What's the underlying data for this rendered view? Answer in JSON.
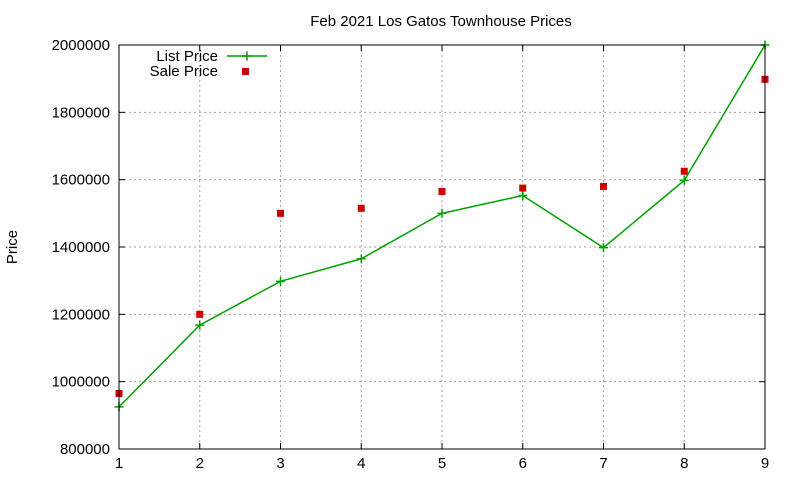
{
  "chart_data": {
    "type": "line",
    "title": "Feb 2021 Los Gatos Townhouse Prices",
    "xlabel": "",
    "ylabel": "Price",
    "x": [
      1,
      2,
      3,
      4,
      5,
      6,
      7,
      8,
      9
    ],
    "x_ticks": [
      "1",
      "2",
      "3",
      "4",
      "5",
      "6",
      "7",
      "8",
      "9"
    ],
    "y_ticks": [
      "800000",
      "1000000",
      "1200000",
      "1400000",
      "1600000",
      "1800000",
      "2000000"
    ],
    "xlim": [
      1,
      9
    ],
    "ylim": [
      800000,
      2000000
    ],
    "grid": true,
    "legend_position": "top-left",
    "series": [
      {
        "name": "List Price",
        "style": "linespoints",
        "marker": "plus",
        "color": "#00a000",
        "values": [
          925000,
          1168000,
          1298000,
          1365000,
          1500000,
          1553000,
          1398000,
          1598000,
          2000000
        ]
      },
      {
        "name": "Sale Price",
        "style": "points",
        "marker": "square",
        "color": "#cc0000",
        "values": [
          965000,
          1200000,
          1500000,
          1515000,
          1565000,
          1575000,
          1580000,
          1625000,
          1898000
        ]
      }
    ]
  }
}
